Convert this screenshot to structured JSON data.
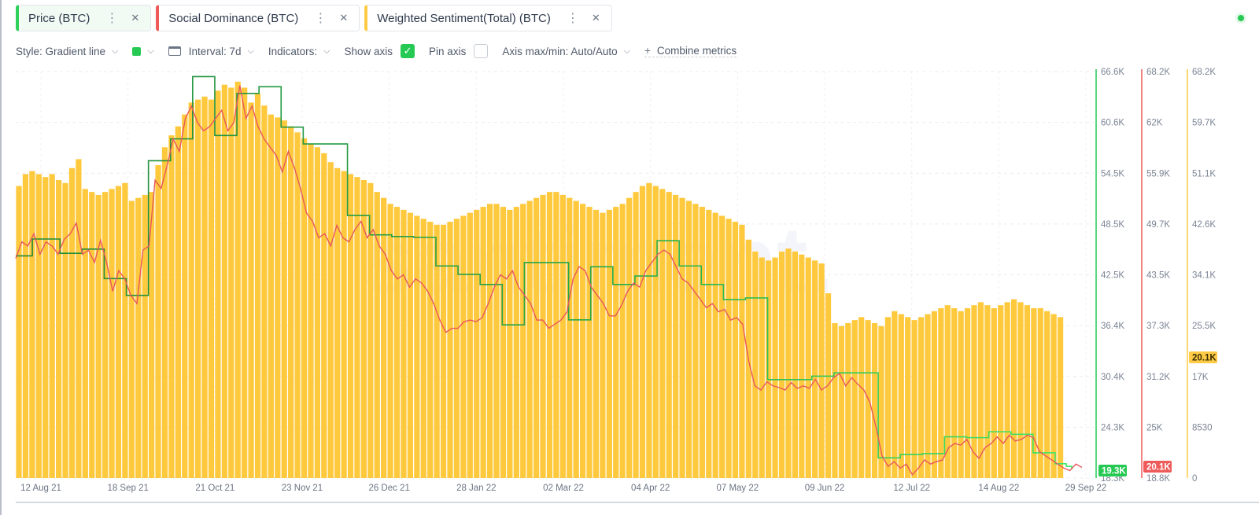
{
  "tabs": [
    {
      "label": "Price (BTC)",
      "color": "#2fd15a"
    },
    {
      "label": "Social Dominance (BTC)",
      "color": "#ef5b5b"
    },
    {
      "label": "Weighted Sentiment(Total) (BTC)",
      "color": "#ffcb47"
    }
  ],
  "toolbar": {
    "style": "Style: Gradient line",
    "interval": "Interval: 7d",
    "indicators": "Indicators:",
    "show_axis": "Show axis",
    "pin_axis": "Pin axis",
    "axis_maxmin": "Axis max/min: Auto/Auto",
    "combine": "Combine metrics",
    "show_axis_checked": true,
    "pin_axis_checked": false
  },
  "watermark": "santiment.",
  "chart_data": {
    "type": "line",
    "x_ticks": [
      "12 Aug 21",
      "18 Sep 21",
      "21 Oct 21",
      "23 Nov 21",
      "26 Dec 21",
      "28 Jan 22",
      "02 Mar 22",
      "04 Apr 22",
      "07 May 22",
      "09 Jun 22",
      "12 Jul 22",
      "14 Aug 22",
      "29 Sep 22"
    ],
    "axes": [
      {
        "metric": "Price (BTC)",
        "color": "#26c953",
        "ticks": [
          "66.6K",
          "60.6K",
          "54.5K",
          "48.5K",
          "42.5K",
          "36.4K",
          "30.4K",
          "24.3K",
          "18.3K"
        ],
        "current": "19.3K",
        "range": [
          18300,
          66600
        ]
      },
      {
        "metric": "Social Dominance (BTC)",
        "color": "#ef5b5b",
        "ticks": [
          "68.2K",
          "62K",
          "55.9K",
          "49.7K",
          "43.5K",
          "37.3K",
          "31.2K",
          "25K",
          "18.8K"
        ],
        "current": "20.1K",
        "range": [
          18800,
          68200
        ]
      },
      {
        "metric": "Weighted Sentiment(Total) (BTC)",
        "color": "#ffcb47",
        "ticks": [
          "68.2K",
          "59.7K",
          "51.1K",
          "42.6K",
          "34.1K",
          "25.5K",
          "17K",
          "8530",
          "0"
        ],
        "current": "20.1K",
        "range": [
          0,
          68200
        ]
      }
    ],
    "series": [
      {
        "name": "Price (BTC)",
        "kind": "step",
        "values": [
          44700,
          44700,
          44700,
          46700,
          46700,
          46700,
          46700,
          46700,
          45000,
          45000,
          45000,
          45000,
          45500,
          45500,
          45500,
          45500,
          42000,
          42000,
          42000,
          42000,
          40000,
          40000,
          40000,
          40000,
          56000,
          56000,
          56000,
          56000,
          58600,
          58600,
          58600,
          58600,
          66000,
          66000,
          66000,
          66000,
          59000,
          59000,
          59000,
          59000,
          64000,
          64000,
          64000,
          64000,
          64800,
          64800,
          64800,
          64800,
          60000,
          60000,
          60000,
          60000,
          58000,
          58000,
          58000,
          58000,
          58000,
          58000,
          58000,
          58000,
          49500,
          49500,
          49500,
          49500,
          47200,
          47200,
          47200,
          47200,
          47000,
          47000,
          47000,
          47000,
          46900,
          46900,
          46900,
          46900,
          43500,
          43500,
          43500,
          43500,
          42500,
          42500,
          42500,
          42500,
          41300,
          41300,
          41300,
          41300,
          36500,
          36500,
          36500,
          36500,
          43900,
          43900,
          43900,
          43900,
          43900,
          43900,
          43900,
          43900,
          37100,
          37100,
          37100,
          37100,
          43400,
          43400,
          43400,
          43400,
          41300,
          41300,
          41300,
          41300,
          42300,
          42300,
          42300,
          42300,
          46500,
          46500,
          46500,
          46500,
          43500,
          43500,
          43500,
          43500,
          41300,
          41300,
          41300,
          41300,
          39500,
          39500,
          39500,
          39500,
          39700,
          39700,
          39700,
          39700,
          30000,
          30000,
          30000,
          30000,
          30000,
          30000,
          30000,
          30000,
          30400,
          30400,
          30400,
          30400,
          30800,
          30800,
          30800,
          30800,
          30800,
          30800,
          30800,
          30800,
          20700,
          20700,
          20700,
          20700,
          21100,
          21100,
          21100,
          21100,
          21200,
          21200,
          21200,
          21200,
          23200,
          23200,
          23200,
          23200,
          23100,
          23100,
          23100,
          23100,
          23800,
          23800,
          23800,
          23800,
          23500,
          23500,
          23500,
          23500,
          21300,
          21300,
          21300,
          21300,
          20000,
          20000,
          19700,
          19300
        ]
      },
      {
        "name": "Social Dominance (BTC)",
        "kind": "line",
        "values": [
          45500,
          47500,
          47000,
          48500,
          46000,
          47500,
          47000,
          46000,
          47800,
          48500,
          49800,
          46000,
          46500,
          45000,
          47700,
          45000,
          41500,
          44000,
          43000,
          41000,
          40000,
          46500,
          47000,
          55000,
          54000,
          56800,
          60000,
          58500,
          62500,
          64000,
          62000,
          61000,
          61500,
          62500,
          63500,
          61000,
          62000,
          66500,
          62500,
          64000,
          61500,
          60000,
          59000,
          58000,
          56000,
          58500,
          56500,
          54000,
          51000,
          50000,
          48000,
          48500,
          47000,
          49500,
          48000,
          47500,
          49000,
          50000,
          48000,
          49000,
          47000,
          46000,
          44000,
          43000,
          43500,
          42000,
          43000,
          42500,
          41500,
          40000,
          38000,
          36500,
          37000,
          37000,
          37800,
          38000,
          37800,
          38300,
          40000,
          42000,
          43500,
          43000,
          44000,
          42000,
          41000,
          40000,
          38000,
          38000,
          37000,
          37500,
          38000,
          39000,
          43000,
          44500,
          44000,
          42000,
          41000,
          40000,
          38500,
          38500,
          39800,
          41500,
          42500,
          42000,
          44000,
          45000,
          46000,
          46500,
          46000,
          44500,
          43000,
          42500,
          41500,
          40500,
          39500,
          40000,
          39000,
          39300,
          38000,
          38300,
          37500,
          33000,
          30000,
          29500,
          30500,
          30000,
          29800,
          29500,
          30400,
          29700,
          30000,
          29700,
          30800,
          29500,
          30000,
          31000,
          31500,
          30000,
          31000,
          30200,
          29500,
          28000,
          25000,
          21500,
          20200,
          20800,
          20000,
          20500,
          19200,
          20000,
          21000,
          20500,
          20800,
          21000,
          22500,
          23000,
          22800,
          23500,
          22000,
          21200,
          22500,
          23000,
          23800,
          23000,
          24000,
          23300,
          23500,
          24000,
          23700,
          22000,
          21500,
          21000,
          20500,
          20000,
          19700,
          20500,
          20100
        ]
      },
      {
        "name": "Weighted Sentiment(Total) (BTC)",
        "kind": "bar",
        "values": [
          49000,
          51000,
          51500,
          51000,
          50500,
          51000,
          50000,
          49500,
          52000,
          53500,
          48500,
          48000,
          47500,
          48000,
          48500,
          49000,
          49500,
          46500,
          47000,
          47500,
          48000,
          52500,
          55500,
          57500,
          59000,
          61000,
          63000,
          63500,
          64000,
          63500,
          65000,
          66000,
          65500,
          66500,
          65500,
          63000,
          64500,
          62500,
          61000,
          60500,
          60000,
          59000,
          58000,
          57000,
          56000,
          55500,
          54500,
          53000,
          52000,
          51500,
          51000,
          50500,
          50000,
          49500,
          48000,
          47000,
          46000,
          45500,
          45000,
          44500,
          44000,
          43500,
          43000,
          42500,
          42500,
          43000,
          43500,
          44000,
          44500,
          45000,
          45500,
          46000,
          46000,
          45500,
          45000,
          45500,
          46000,
          46500,
          47000,
          47500,
          48000,
          48000,
          47500,
          47000,
          46500,
          46000,
          45500,
          45000,
          44500,
          45000,
          45500,
          46000,
          47000,
          48000,
          49000,
          49500,
          49000,
          48500,
          48000,
          47500,
          47000,
          46500,
          46000,
          45500,
          45000,
          44500,
          44000,
          43500,
          43000,
          42500,
          40000,
          38000,
          37000,
          36500,
          37000,
          38000,
          38500,
          38000,
          37500,
          37000,
          36500,
          36000,
          31000,
          26000,
          25500,
          26000,
          26500,
          27000,
          26500,
          26000,
          25500,
          27000,
          28000,
          27500,
          27000,
          26500,
          27000,
          27500,
          28000,
          28500,
          29000,
          28500,
          28000,
          28500,
          29000,
          29500,
          29000,
          28500,
          29000,
          29500,
          30000,
          29500,
          29000,
          28500,
          28500,
          28000,
          27500,
          27000
        ]
      }
    ],
    "grid": true,
    "legend": "top"
  }
}
